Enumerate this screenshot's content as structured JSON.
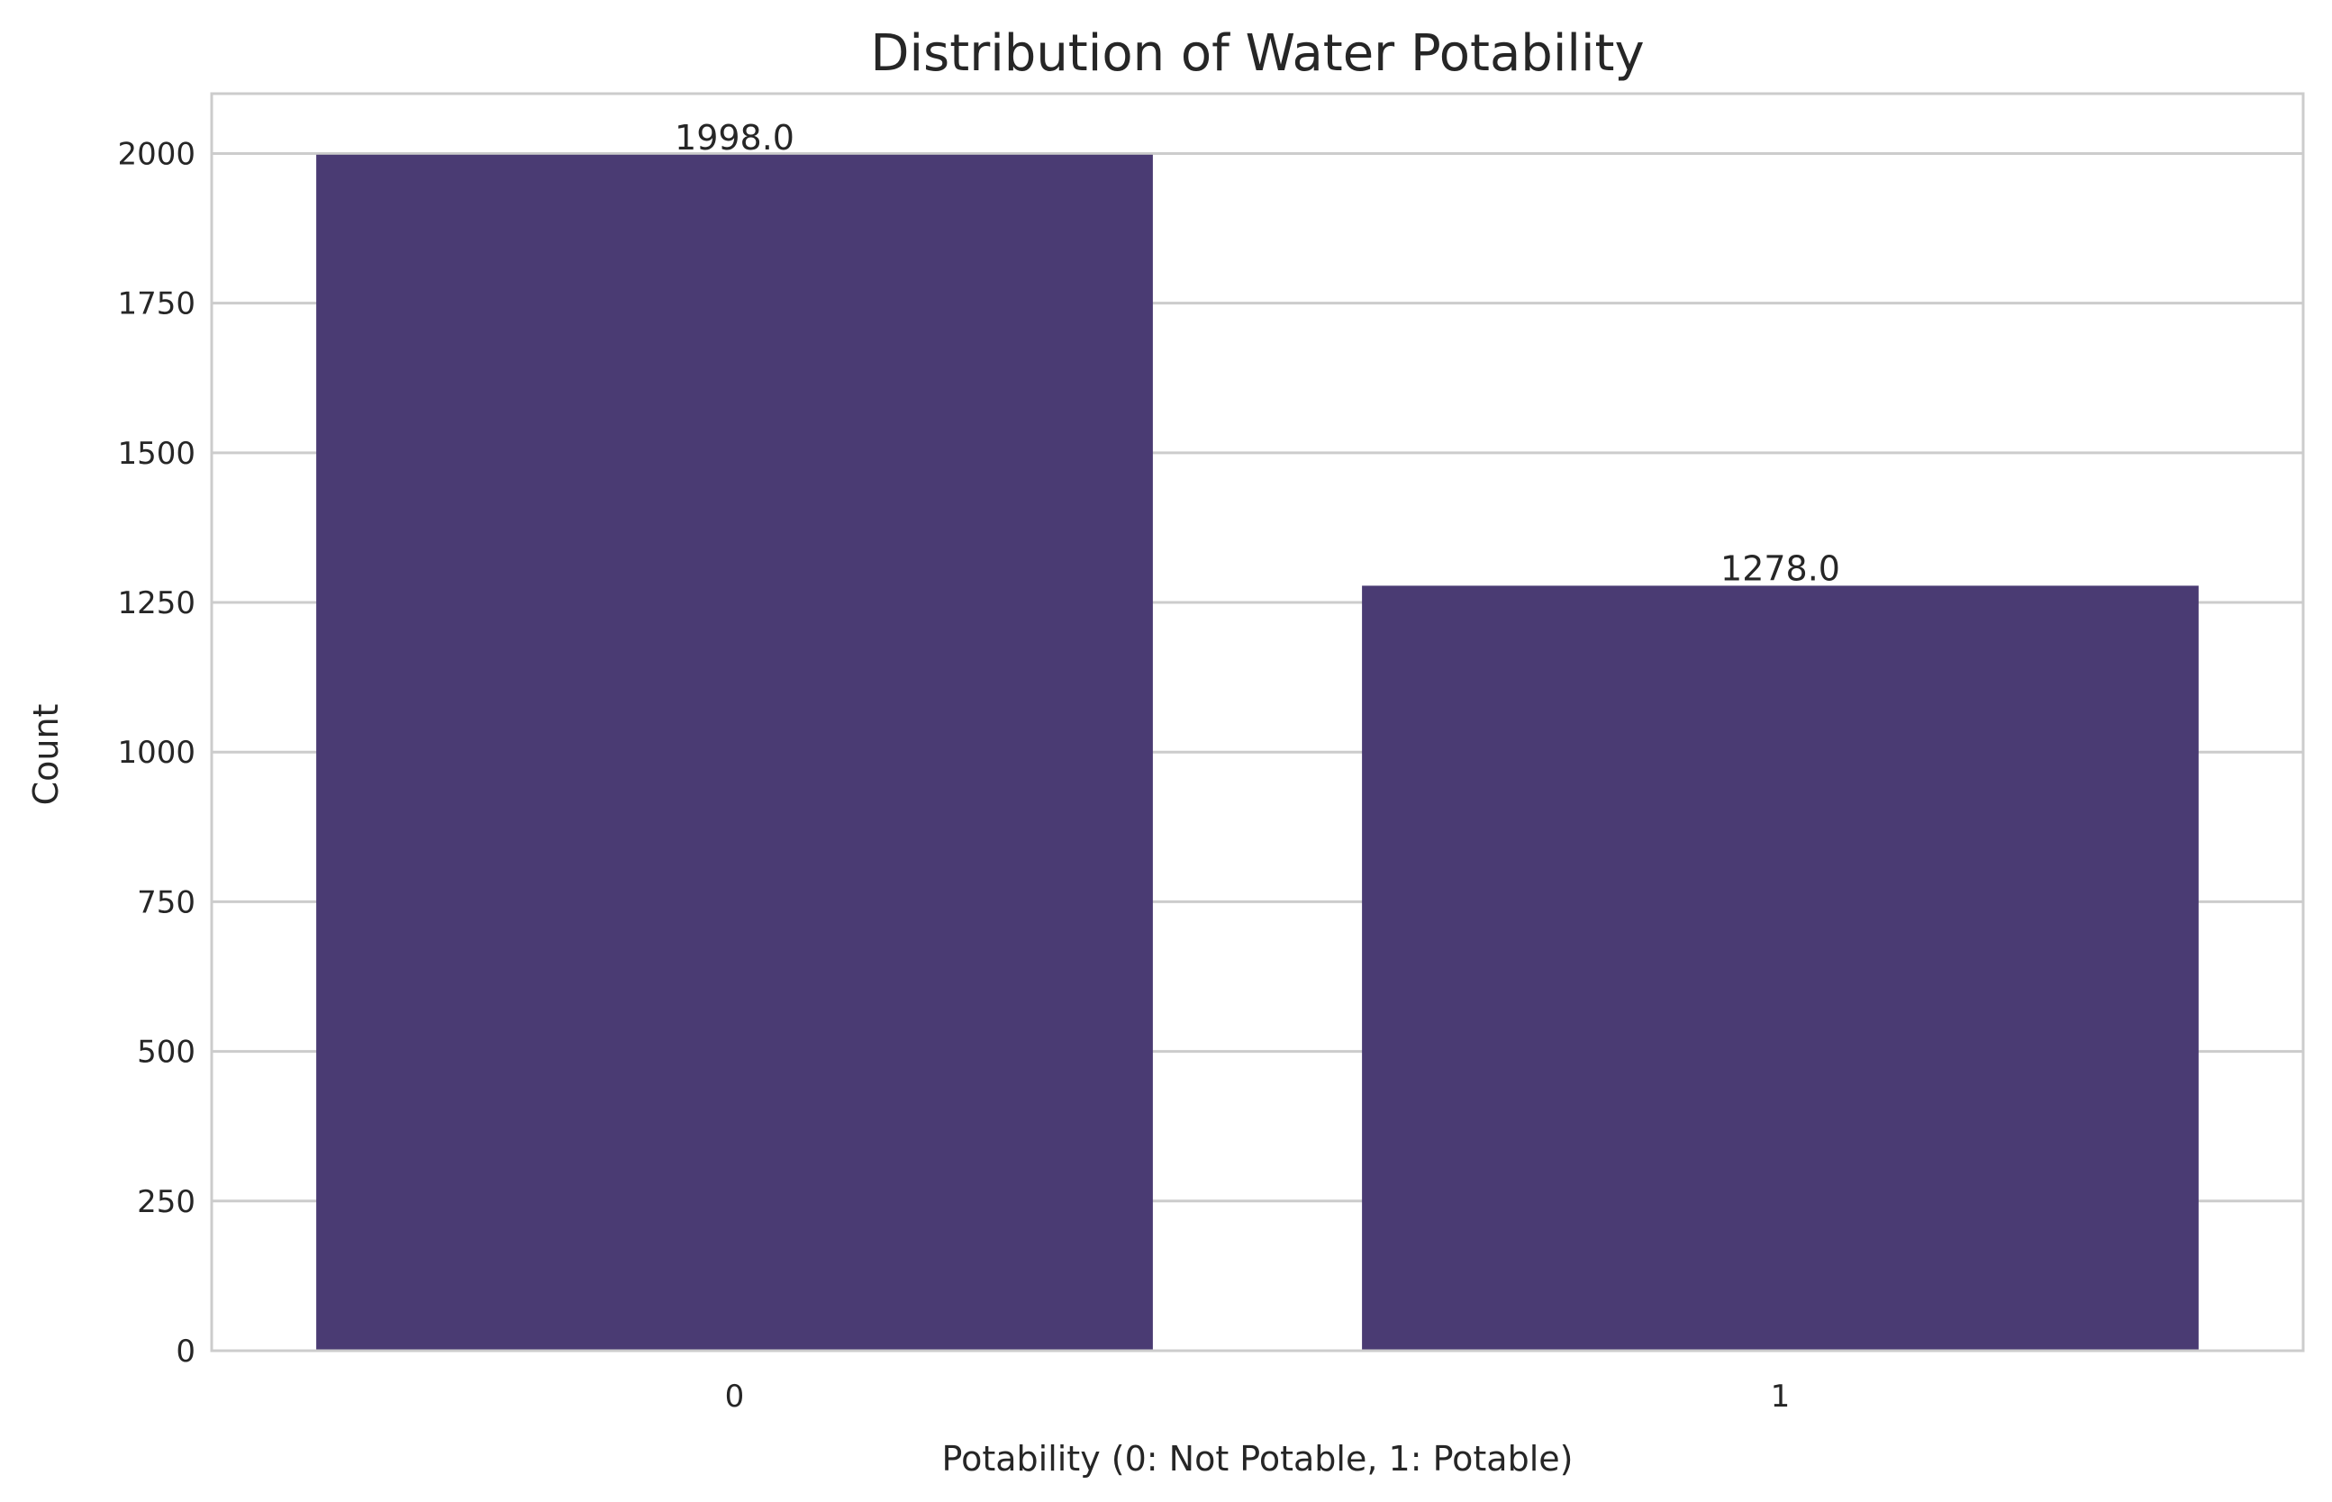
{
  "chart_data": {
    "type": "bar",
    "title": "Distribution of Water Potability",
    "xlabel": "Potability (0: Not Potable, 1: Potable)",
    "ylabel": "Count",
    "categories": [
      "0",
      "1"
    ],
    "values": [
      1998,
      1278
    ],
    "data_labels": [
      "1998.0",
      "1278.0"
    ],
    "ylim": [
      0,
      2100
    ],
    "yticks": [
      0,
      250,
      500,
      750,
      1000,
      1250,
      1500,
      1750,
      2000
    ],
    "ytick_labels": [
      "0",
      "250",
      "500",
      "750",
      "1000",
      "1250",
      "1500",
      "1750",
      "2000"
    ],
    "grid": "horizontal",
    "legend": "none",
    "colors": {
      "bar": "#4a3b73",
      "grid": "#cccccc",
      "frame": "#cccccc",
      "text": "#262626"
    }
  }
}
